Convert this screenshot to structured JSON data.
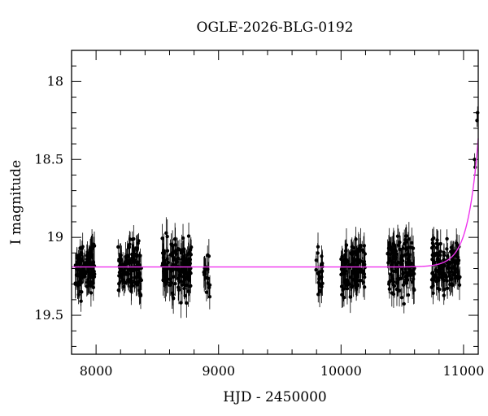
{
  "chart_data": {
    "type": "scatter",
    "title": "OGLE-2026-BLG-0192",
    "xlabel": "HJD - 2450000",
    "ylabel": "I magnitude",
    "xlim": [
      7800,
      11120
    ],
    "ylim": [
      19.75,
      17.8
    ],
    "y_inverted": true,
    "x_ticks": [
      8000,
      9000,
      10000,
      11000
    ],
    "x_tick_labels": [
      "8000",
      "9000",
      "10000",
      "11000"
    ],
    "y_ticks": [
      18,
      18.5,
      19,
      19.5
    ],
    "y_tick_labels": [
      "18",
      "18.5",
      "19",
      "19.5"
    ],
    "grid": false,
    "legend": "none",
    "series": [
      {
        "kind": "points_with_errorbars",
        "color": "#000000",
        "clusters": [
          {
            "x_range": [
              7830,
              7990
            ],
            "y_center": 19.2,
            "y_spread": 0.12,
            "err": 0.07,
            "n": 110
          },
          {
            "x_range": [
              8180,
              8370
            ],
            "y_center": 19.2,
            "y_spread": 0.12,
            "err": 0.07,
            "n": 130
          },
          {
            "x_range": [
              8540,
              8780
            ],
            "y_center": 19.2,
            "y_spread": 0.13,
            "err": 0.08,
            "n": 150
          },
          {
            "x_range": [
              8880,
              8930
            ],
            "y_center": 19.2,
            "y_spread": 0.12,
            "err": 0.08,
            "n": 18
          },
          {
            "x_range": [
              9790,
              9850
            ],
            "y_center": 19.22,
            "y_spread": 0.12,
            "err": 0.08,
            "n": 25
          },
          {
            "x_range": [
              10000,
              10200
            ],
            "y_center": 19.2,
            "y_spread": 0.12,
            "err": 0.08,
            "n": 120
          },
          {
            "x_range": [
              10380,
              10600
            ],
            "y_center": 19.18,
            "y_spread": 0.12,
            "err": 0.08,
            "n": 130
          },
          {
            "x_range": [
              10740,
              10970
            ],
            "y_center": 19.18,
            "y_spread": 0.12,
            "err": 0.07,
            "n": 140
          }
        ],
        "points": [
          {
            "x": 11090,
            "y": 18.5,
            "err": 0.04
          },
          {
            "x": 11095,
            "y": 18.55,
            "err": 0.04
          },
          {
            "x": 11110,
            "y": 18.25,
            "err": 0.04
          },
          {
            "x": 11115,
            "y": 18.2,
            "err": 0.04
          }
        ]
      },
      {
        "kind": "model_curve",
        "color": "#ee33ee",
        "baseline": 19.19,
        "t0": 11160,
        "tau": 85,
        "amplitude": 1.32,
        "x_range": [
          7800,
          11120
        ]
      }
    ]
  }
}
